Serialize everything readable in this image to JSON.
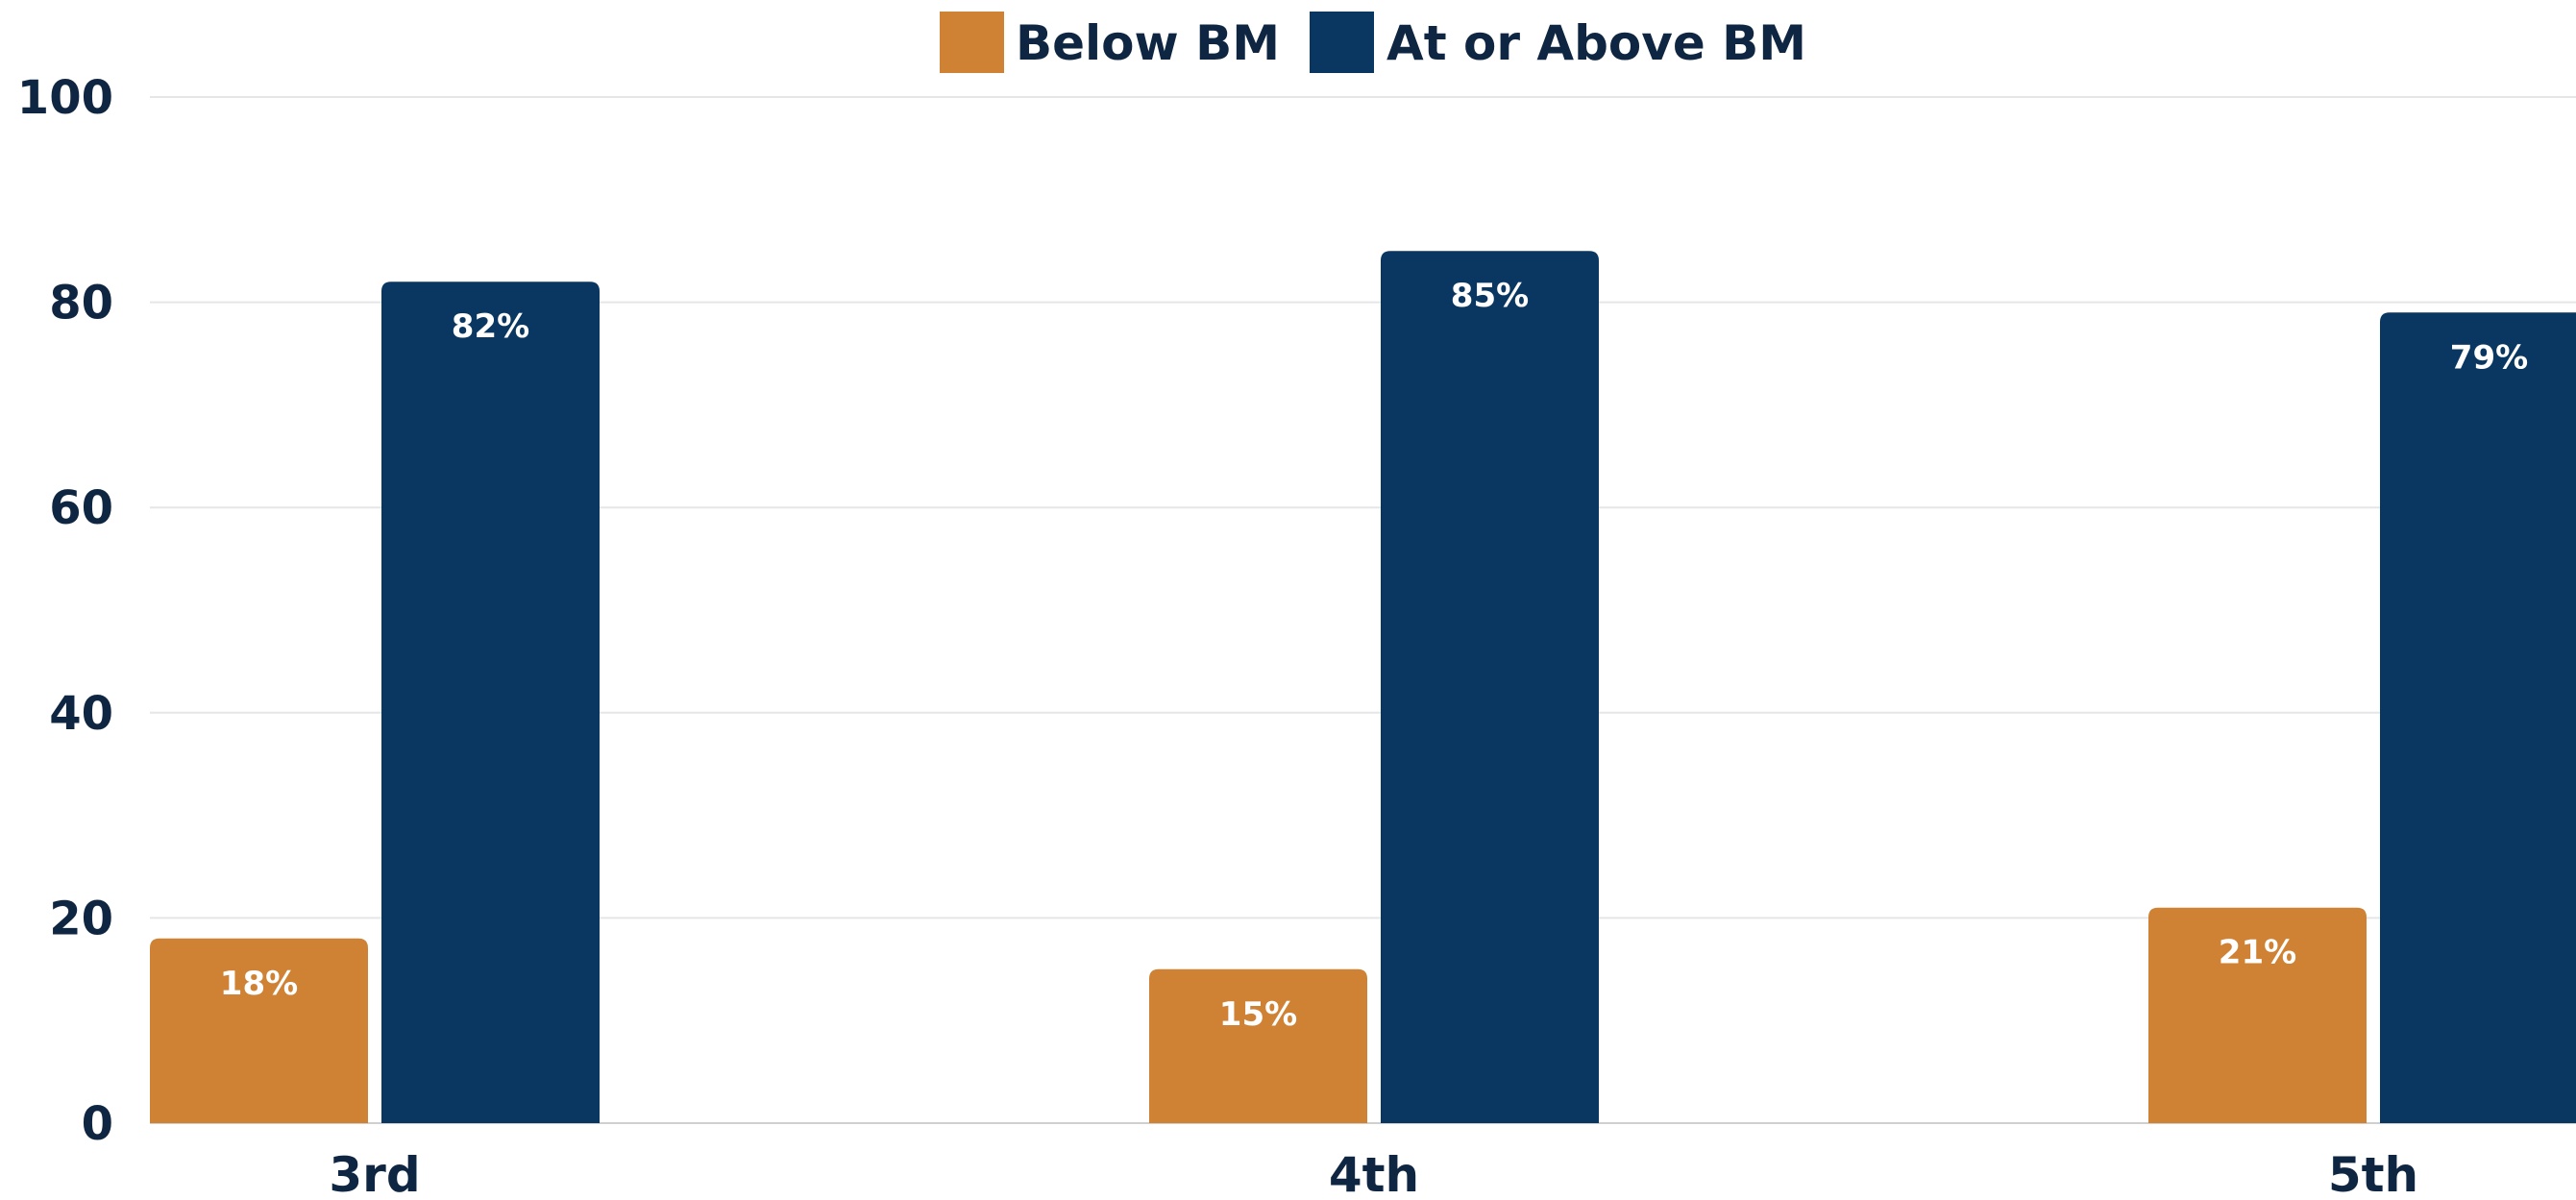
{
  "chart_data": {
    "type": "bar",
    "categories": [
      "3rd",
      "4th",
      "5th"
    ],
    "series": [
      {
        "name": "Below BM",
        "values": [
          18,
          15,
          21
        ],
        "labels": [
          "18%",
          "15%",
          "21%"
        ],
        "color": "#cf8234"
      },
      {
        "name": "At or Above BM",
        "values": [
          82,
          85,
          79
        ],
        "labels": [
          "82%",
          "85%",
          "79%"
        ],
        "color": "#0a3761"
      }
    ],
    "title": "",
    "xlabel": "",
    "ylabel": "",
    "ylim": [
      0,
      100
    ],
    "yticks": [
      "0",
      "20",
      "40",
      "60",
      "80",
      "100"
    ],
    "grid": true,
    "legend_position": "top-center"
  }
}
